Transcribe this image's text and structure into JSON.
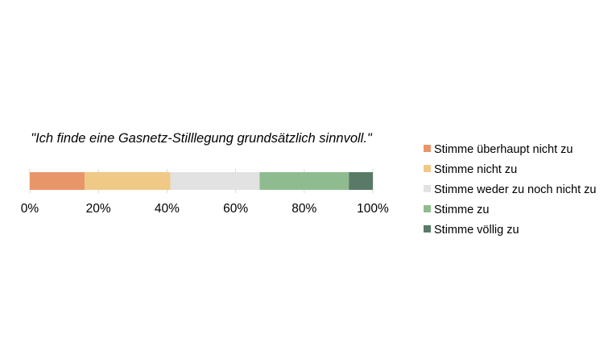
{
  "chart_data": {
    "type": "bar",
    "orientation": "horizontal",
    "stacked": true,
    "title": "\"Ich finde eine Gasnetz-Stilllegung grundsätzlich sinnvoll.\"",
    "xlim": [
      0,
      100
    ],
    "x_ticks": [
      "0%",
      "20%",
      "40%",
      "60%",
      "80%",
      "100%"
    ],
    "gridlines": true,
    "legend_position": "right",
    "series": [
      {
        "name": "Stimme überhaupt nicht zu",
        "values": [
          16
        ],
        "color": "#E9956A"
      },
      {
        "name": "Stimme nicht zu",
        "values": [
          25
        ],
        "color": "#EFC985"
      },
      {
        "name": "Stimme weder zu noch nicht zu",
        "values": [
          26
        ],
        "color": "#E2E2E2"
      },
      {
        "name": "Stimme zu",
        "values": [
          26
        ],
        "color": "#8FBC8F"
      },
      {
        "name": "Stimme völlig zu",
        "values": [
          7
        ],
        "color": "#5A7A68"
      }
    ]
  }
}
